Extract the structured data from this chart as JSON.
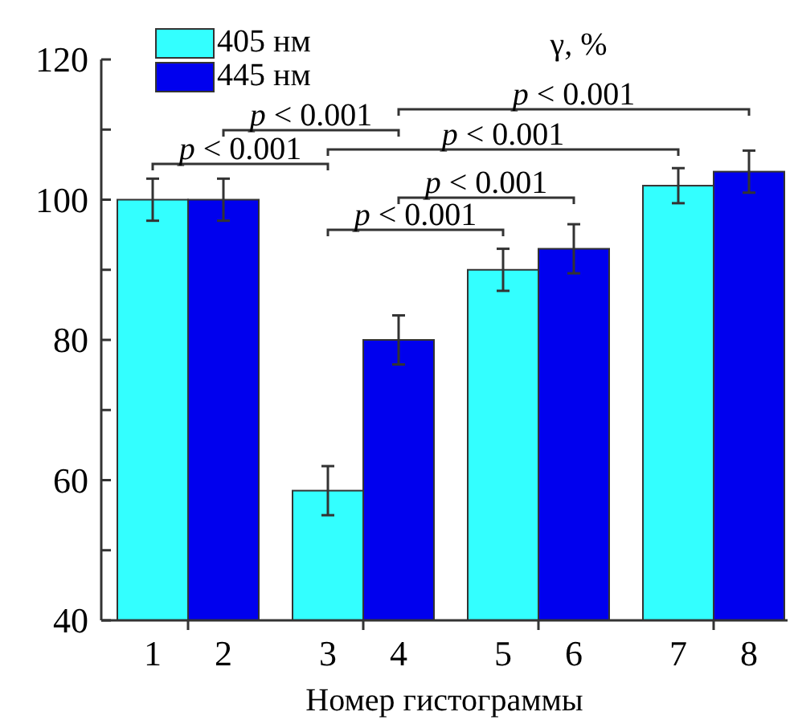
{
  "chart_data": {
    "type": "bar",
    "xlabel": "Номер гистограммы",
    "ylabel": "γ, %",
    "categories": [
      "1",
      "2",
      "3",
      "4",
      "5",
      "6",
      "7",
      "8"
    ],
    "series": [
      {
        "name": "405 нм",
        "color": "#33ffff",
        "values": [
          100,
          null,
          58.5,
          null,
          90,
          null,
          102,
          null
        ],
        "errors": [
          3,
          null,
          3.5,
          null,
          3,
          null,
          2.5,
          null
        ]
      },
      {
        "name": "445 нм",
        "color": "#0000ee",
        "values": [
          null,
          100,
          null,
          80,
          null,
          93,
          null,
          104
        ],
        "errors": [
          null,
          3,
          null,
          3.5,
          null,
          3.5,
          null,
          3
        ]
      }
    ],
    "ylim": [
      40,
      120
    ],
    "yticks": [
      40,
      {
        "value": 50,
        "label": null
      },
      60,
      {
        "value": 70,
        "label": null
      },
      80,
      {
        "value": 90,
        "label": null
      },
      100,
      {
        "value": 110,
        "label": null
      },
      120
    ],
    "legend": "top left",
    "grid": false,
    "annotations": [
      "p < 0.001",
      "p < 0.001",
      "p < 0.001",
      "p < 0.001",
      "p < 0.001",
      "p < 0.001"
    ]
  }
}
